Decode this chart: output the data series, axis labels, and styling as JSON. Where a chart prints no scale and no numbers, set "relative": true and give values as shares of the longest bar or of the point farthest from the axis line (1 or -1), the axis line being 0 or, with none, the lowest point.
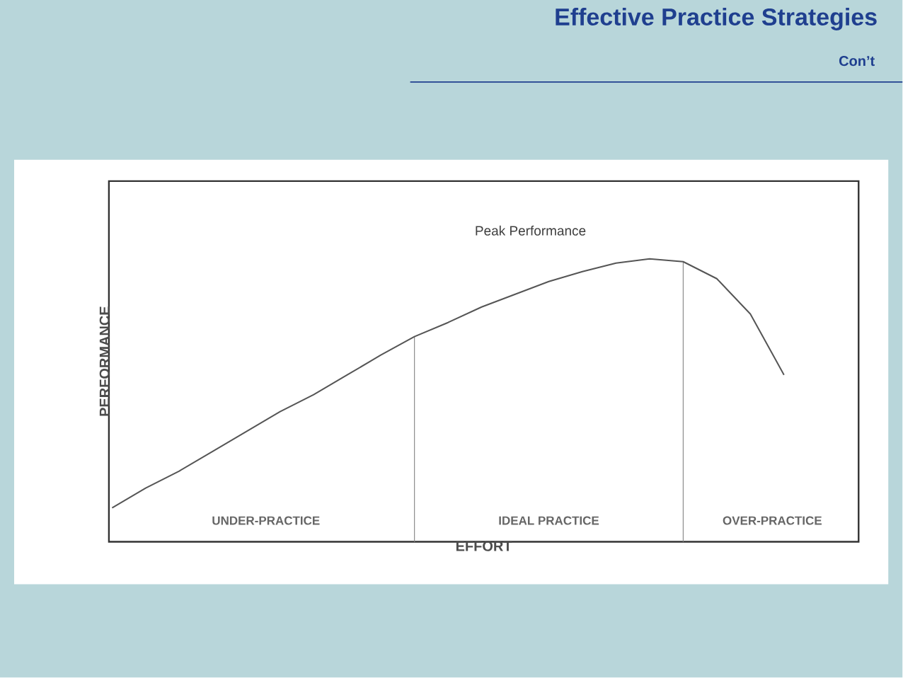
{
  "chart_data": {
    "type": "line",
    "title": "Effective Practice Strategies",
    "subtitle": "Con’t",
    "xlabel": "EFFORT",
    "ylabel": "PERFORMANCE",
    "relative": true,
    "categories": [
      null,
      null,
      null,
      null,
      null,
      null,
      null,
      null,
      null,
      null,
      null,
      null,
      null,
      null,
      null,
      null,
      null,
      null,
      null,
      null,
      null
    ],
    "values": [
      0.12,
      0.19,
      0.25,
      0.32,
      0.39,
      0.46,
      0.52,
      0.59,
      0.66,
      0.725,
      0.775,
      0.83,
      0.875,
      0.92,
      0.955,
      0.985,
      1,
      0.99,
      0.93,
      0.805,
      0.59
    ],
    "color": "#555555",
    "annotations": [
      "Peak Performance",
      "UNDER-PRACTICE",
      "IDEAL PRACTICE",
      "OVER-PRACTICE"
    ]
  }
}
